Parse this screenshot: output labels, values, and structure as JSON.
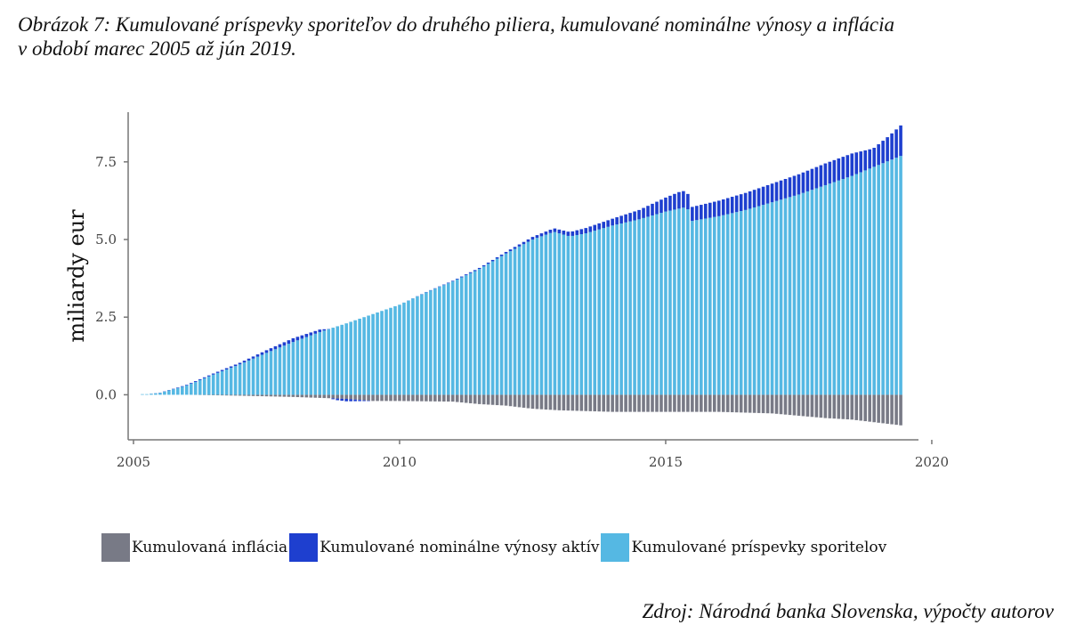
{
  "caption": {
    "line1": "Obrázok 7: Kumulované príspevky sporiteľov do druhého piliera,  kumulované nominálne výnosy a inflácia",
    "line2": "v období marec 2005 až jún 2019."
  },
  "source": "Zdroj: Národná banka Slovenska, výpočty autorov",
  "colors": {
    "inflation": "#787a86",
    "returns": "#1e3fcf",
    "contributions": "#55b8e3",
    "axis": "#777777"
  },
  "chart_data": {
    "type": "bar",
    "stacked": true,
    "frequency": "monthly",
    "period": "2005-03 to 2019-06",
    "title": "",
    "xlabel": "",
    "ylabel": "miliardy eur",
    "xlim": [
      2004.9,
      2019.75
    ],
    "ylim": [
      -1.45,
      9.1
    ],
    "x_ticks": [
      2005,
      2010,
      2015,
      2020
    ],
    "y_ticks": [
      0.0,
      2.5,
      5.0,
      7.5
    ],
    "x_tick_labels": [
      "2005",
      "2010",
      "2015",
      "2020"
    ],
    "y_tick_labels": [
      "0.0",
      "2.5",
      "5.0",
      "7.5"
    ],
    "legend_position": "bottom",
    "series": [
      {
        "name": "Kumulovaná inflácia",
        "anchors": [
          [
            2005.25,
            0.0
          ],
          [
            2006.0,
            0.0
          ],
          [
            2007.0,
            -0.03
          ],
          [
            2008.0,
            -0.07
          ],
          [
            2009.0,
            -0.13
          ],
          [
            2009.5,
            -0.2
          ],
          [
            2010.0,
            -0.2
          ],
          [
            2011.0,
            -0.22
          ],
          [
            2011.5,
            -0.3
          ],
          [
            2012.0,
            -0.35
          ],
          [
            2012.5,
            -0.45
          ],
          [
            2013.0,
            -0.5
          ],
          [
            2014.0,
            -0.55
          ],
          [
            2015.0,
            -0.55
          ],
          [
            2016.0,
            -0.55
          ],
          [
            2017.0,
            -0.6
          ],
          [
            2018.0,
            -0.75
          ],
          [
            2018.5,
            -0.8
          ],
          [
            2019.0,
            -0.9
          ],
          [
            2019.5,
            -1.0
          ]
        ]
      },
      {
        "name": "Kumulované nominálne výnosy aktív",
        "anchors": [
          [
            2005.25,
            0.0
          ],
          [
            2006.0,
            0.02
          ],
          [
            2007.0,
            0.05
          ],
          [
            2008.0,
            0.12
          ],
          [
            2008.5,
            0.08
          ],
          [
            2008.8,
            -0.05
          ],
          [
            2009.0,
            -0.08
          ],
          [
            2009.5,
            0.0
          ],
          [
            2010.0,
            0.0
          ],
          [
            2011.0,
            0.02
          ],
          [
            2012.0,
            0.05
          ],
          [
            2012.75,
            0.1
          ],
          [
            2013.0,
            0.12
          ],
          [
            2014.0,
            0.22
          ],
          [
            2014.5,
            0.3
          ],
          [
            2015.0,
            0.45
          ],
          [
            2015.3,
            0.55
          ],
          [
            2015.5,
            0.45
          ],
          [
            2016.0,
            0.5
          ],
          [
            2017.0,
            0.6
          ],
          [
            2018.0,
            0.7
          ],
          [
            2018.5,
            0.72
          ],
          [
            2018.9,
            0.6
          ],
          [
            2019.2,
            0.8
          ],
          [
            2019.5,
            1.05
          ]
        ]
      },
      {
        "name": "Kumulované príspevky sporitelov",
        "anchors": [
          [
            2005.25,
            0.02
          ],
          [
            2005.5,
            0.06
          ],
          [
            2006.0,
            0.3
          ],
          [
            2006.5,
            0.65
          ],
          [
            2007.0,
            0.98
          ],
          [
            2007.5,
            1.35
          ],
          [
            2008.0,
            1.7
          ],
          [
            2008.5,
            2.02
          ],
          [
            2009.0,
            2.3
          ],
          [
            2009.5,
            2.6
          ],
          [
            2010.0,
            2.9
          ],
          [
            2010.5,
            3.3
          ],
          [
            2011.0,
            3.65
          ],
          [
            2011.5,
            4.05
          ],
          [
            2012.0,
            4.55
          ],
          [
            2012.5,
            5.0
          ],
          [
            2012.9,
            5.25
          ],
          [
            2013.2,
            5.1
          ],
          [
            2013.5,
            5.2
          ],
          [
            2014.0,
            5.45
          ],
          [
            2014.5,
            5.65
          ],
          [
            2015.0,
            5.9
          ],
          [
            2015.4,
            6.05
          ],
          [
            2015.5,
            5.6
          ],
          [
            2016.0,
            5.75
          ],
          [
            2016.5,
            5.95
          ],
          [
            2017.0,
            6.2
          ],
          [
            2017.5,
            6.45
          ],
          [
            2018.0,
            6.75
          ],
          [
            2018.5,
            7.05
          ],
          [
            2019.0,
            7.4
          ],
          [
            2019.5,
            7.75
          ]
        ]
      }
    ]
  }
}
